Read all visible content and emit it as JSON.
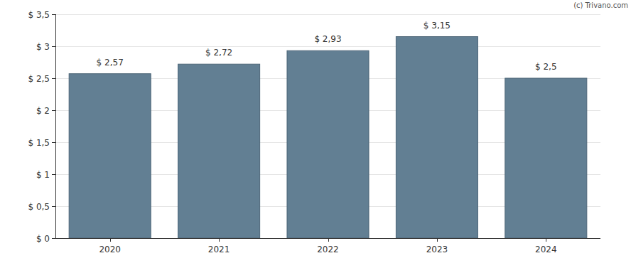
{
  "chart_data": {
    "type": "bar",
    "annotations": [
      "(c) Trivano.com"
    ],
    "categories": [
      "2020",
      "2021",
      "2022",
      "2023",
      "2024"
    ],
    "values": [
      2.57,
      2.72,
      2.93,
      3.15,
      2.5
    ],
    "value_labels": [
      "$ 2,57",
      "$ 2,72",
      "$ 2,93",
      "$ 3,15",
      "$ 2,5"
    ],
    "color": "#627f93",
    "ylim": [
      0,
      3.5
    ],
    "yticks": [
      {
        "value": 0,
        "label": "$ 0"
      },
      {
        "value": 0.5,
        "label": "$ 0,5"
      },
      {
        "value": 1,
        "label": "$ 1"
      },
      {
        "value": 1.5,
        "label": "$ 1,5"
      },
      {
        "value": 2,
        "label": "$ 2"
      },
      {
        "value": 2.5,
        "label": "$ 2,5"
      },
      {
        "value": 3,
        "label": "$ 3"
      },
      {
        "value": 3.5,
        "label": "$ 3,5"
      }
    ],
    "grid": true,
    "data_labels": true
  }
}
